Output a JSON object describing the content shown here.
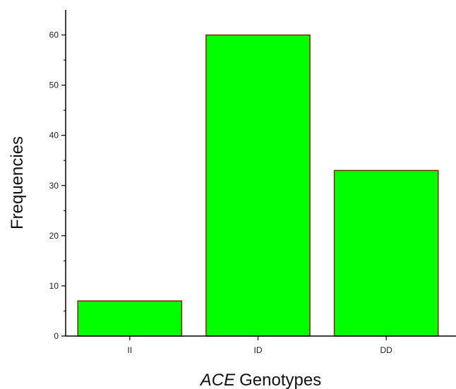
{
  "chart_data": {
    "type": "bar",
    "categories": [
      "II",
      "ID",
      "DD"
    ],
    "values": [
      7,
      60,
      33
    ],
    "xlabel": {
      "italic_part": "ACE",
      "rest": "Genotypes"
    },
    "ylabel": "Frequencies",
    "ylim": [
      0,
      65
    ],
    "yticks": [
      0,
      10,
      20,
      30,
      40,
      50,
      60
    ],
    "grid": false,
    "bar_color": "#00ff00",
    "bar_edge_color": "#7a2a00"
  }
}
